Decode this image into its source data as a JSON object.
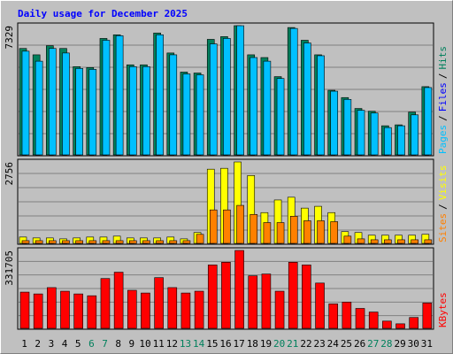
{
  "chart_data": [
    {
      "type": "bar",
      "title": "Daily usage for December 2025",
      "legend": [
        "Pages",
        "Files",
        "Hits"
      ],
      "legend_colors": [
        "#00c0ff",
        "#0000ff",
        "#00805c"
      ],
      "legend_separator": "/",
      "series": [
        {
          "color": "#00805c",
          "values": [
            6037,
            5676,
            6192,
            6037,
            5005,
            4954,
            6605,
            6811,
            5108,
            5108,
            6914,
            5779,
            4696,
            4644,
            6553,
            6708,
            7329,
            5676,
            5521,
            4438,
            7224,
            6502,
            5676,
            3664,
            3251,
            2632,
            2477,
            1651,
            1703,
            2425,
            3870
          ]
        },
        {
          "color": "#00c0ff",
          "values": [
            5882,
            5315,
            6037,
            5779,
            4902,
            4850,
            6502,
            6760,
            5005,
            5005,
            6811,
            5676,
            4592,
            4541,
            6295,
            6605,
            7327,
            5521,
            5315,
            4334,
            7172,
            6347,
            5624,
            3612,
            3148,
            2528,
            2374,
            1548,
            1651,
            2270,
            3818
          ]
        }
      ],
      "ylim": [
        0,
        7329
      ],
      "yticks": [
        7329
      ]
    },
    {
      "type": "bar",
      "legend": [
        "Sites",
        "Visits"
      ],
      "legend_colors": [
        "#ff8000",
        "#ffff00"
      ],
      "legend_separator": "/",
      "series": [
        {
          "color": "#ffff00",
          "values": [
            214,
            184,
            184,
            153,
            184,
            214,
            214,
            245,
            184,
            184,
            184,
            214,
            153,
            367,
            2511,
            2541,
            2756,
            2297,
            1041,
            1470,
            1562,
            1194,
            1255,
            1041,
            398,
            367,
            276,
            276,
            276,
            276,
            306
          ]
        },
        {
          "color": "#ff8000",
          "values": [
            92,
            92,
            92,
            92,
            92,
            92,
            92,
            92,
            92,
            92,
            92,
            92,
            92,
            306,
            1133,
            1133,
            1286,
            980,
            704,
            704,
            919,
            766,
            766,
            735,
            245,
            153,
            122,
            122,
            122,
            122,
            122
          ]
        }
      ],
      "ylim": [
        0,
        2756
      ],
      "yticks": [
        2756
      ]
    },
    {
      "type": "bar",
      "legend": [
        "KBytes"
      ],
      "legend_colors": [
        "#ff0000"
      ],
      "series": [
        {
          "color": "#ff0000",
          "values": [
            154280,
            146566,
            173565,
            158137,
            146566,
            138852,
            212135,
            239134,
            161994,
            150423,
            215992,
            173565,
            150423,
            158137,
            269990,
            281561,
            331705,
            223706,
            231420,
            158137,
            281561,
            269990,
            192850,
            104139,
            111853,
            84854,
            69426,
            30856,
            19285,
            46284,
            107996
          ]
        }
      ],
      "ylim": [
        0,
        331705
      ],
      "yticks": [
        331705
      ],
      "categories": [
        "1",
        "2",
        "3",
        "4",
        "5",
        "6",
        "7",
        "8",
        "9",
        "10",
        "11",
        "12",
        "13",
        "14",
        "15",
        "16",
        "17",
        "18",
        "19",
        "20",
        "21",
        "22",
        "23",
        "24",
        "25",
        "26",
        "27",
        "28",
        "29",
        "30",
        "31"
      ],
      "highlight_categories": [
        5,
        6,
        12,
        13,
        19,
        20,
        26,
        27
      ],
      "highlight_color": "#00805c",
      "category_color": "#000000"
    }
  ]
}
